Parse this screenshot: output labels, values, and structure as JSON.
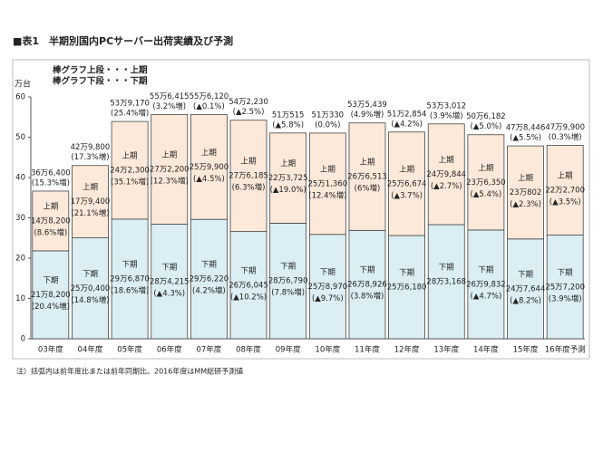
{
  "chart_data": {
    "type": "stacked_bar",
    "title": "■表1　半期別国内PCサーバー出荷実績及び予測",
    "legend_lines": [
      "棒グラフ上段・・・上期",
      "棒グラフ下段・・・下期"
    ],
    "y_unit": "万台",
    "note": "注）括弧内は前年度比または前年同期比。2016年度はMM総研予測値",
    "categories": [
      "03年度",
      "04年度",
      "05年度",
      "06年度",
      "07年度",
      "08年度",
      "09年度",
      "10年度",
      "11年度",
      "12年度",
      "13年度",
      "14年度",
      "15年度",
      "16年度予測"
    ],
    "series": [
      {
        "name": "下期",
        "color": "#daeef3",
        "values": [
          21.82,
          25.04,
          29.687,
          28.4215,
          29.622,
          26.6045,
          28.679,
          25.897,
          26.8926,
          25.618,
          28.3168,
          26.9832,
          24.7644,
          25.72
        ],
        "value_labels": [
          "21万8,200",
          "25万0,400",
          "29万6,870",
          "28万4,215",
          "29万6,220",
          "26万6,045",
          "28万6,790",
          "25万8,970",
          "26万8,926",
          "25万6,180",
          "28万3,168",
          "26万9,832",
          "24万7,644",
          "25万7,200"
        ],
        "growth_labels": [
          "(20.4%増)",
          "(14.8%増)",
          "(18.6%増)",
          "(▲4.3%)",
          "(4.2%増)",
          "(▲10.2%)",
          "(7.8%増)",
          "(▲9.7%)",
          "(3.8%増)",
          null,
          null,
          "(▲4.7%)",
          "(▲8.2%)",
          "(3.9%増)"
        ]
      },
      {
        "name": "上期",
        "color": "#fde9d9",
        "values": [
          14.82,
          17.94,
          24.23,
          27.22,
          25.99,
          27.6185,
          22.3725,
          25.136,
          26.6513,
          25.6674,
          24.9844,
          23.635,
          23.0802,
          22.27
        ],
        "value_labels": [
          "14万8,200",
          "17万9,400",
          "24万2,300",
          "27万2,200",
          "25万9,900",
          "27万6,185",
          "22万3,725",
          "25万1,360",
          "26万6,513",
          "25万6,674",
          "24万9,844",
          "23万6,350",
          "23万802",
          "22万2,700"
        ],
        "growth_labels": [
          "(8.6%増)",
          "(21.1%増)",
          "(35.1%増)",
          "(12.3%増)",
          "(▲4.5%)",
          "(6.3%増)",
          "(▲19.0%)",
          "(12.4%増)",
          "(6%増)",
          "(▲3.7%)",
          "(▲2.7%)",
          "(▲5.4%)",
          "(▲2.3%)",
          "(▲3.5%)"
        ]
      }
    ],
    "total_labels": [
      "36万6,400",
      "42万9,800",
      "53万9,170",
      "55万6,415",
      "55万6,120",
      "54万2,230",
      "51万515",
      "51万330",
      "53万5,439",
      "51万2,854",
      "53万3,012",
      "50万6,182",
      "47万8,446",
      "47万9,900"
    ],
    "total_growth_labels": [
      "(15.3%増)",
      "(17.3%増)",
      "(25.4%増)",
      "(3.2%増)",
      "(▲0.1%)",
      "(▲2.5%)",
      "(▲5.8%)",
      "(0.0%)",
      "(4.9%増)",
      "(▲4.2%)",
      "(3.9%増)",
      "(▲5.0%)",
      "(▲5.5%)",
      "(0.3%増)"
    ],
    "ylim": [
      0,
      60
    ],
    "yticks": [
      0,
      10,
      20,
      30,
      40,
      50,
      60
    ],
    "grid": false
  }
}
